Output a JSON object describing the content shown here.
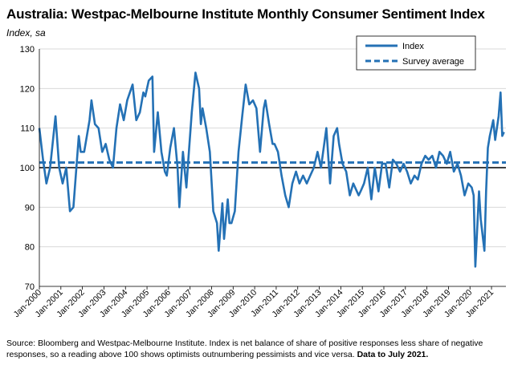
{
  "chart_data": {
    "type": "line",
    "title": "Australia: Westpac-Melbourne Institute Monthly Consumer Sentiment Index",
    "subtitle": "Index, sa",
    "xlabel": "",
    "ylabel": "",
    "ylim": [
      70,
      130
    ],
    "yticks": [
      70,
      80,
      90,
      100,
      110,
      120,
      130
    ],
    "xlim": [
      2000.0,
      2021.67
    ],
    "xticks": [
      "Jan-2000",
      "Jan-2001",
      "Jan-2002",
      "Jan-2003",
      "Jan-2004",
      "Jan-2005",
      "Jan-2006",
      "Jan-2007",
      "Jan-2008",
      "Jan-2009",
      "Jan-2010",
      "Jan-2011",
      "Jan-2012",
      "Jan-2013",
      "Jan-2014",
      "Jan-2015",
      "Jan-2016",
      "Jan-2017",
      "Jan-2018",
      "Jan-2019",
      "Jan-2020",
      "Jan-2021"
    ],
    "grid": true,
    "reference_line": 100,
    "legend_position": "top-right",
    "colors": {
      "series": "#2471b5",
      "reference": "#000000",
      "grid": "#d9d9d9"
    },
    "series": [
      {
        "name": "Index",
        "style": "solid",
        "points": [
          [
            2000.0,
            110
          ],
          [
            2000.17,
            102
          ],
          [
            2000.33,
            96
          ],
          [
            2000.5,
            100
          ],
          [
            2000.75,
            113
          ],
          [
            2000.92,
            100
          ],
          [
            2001.08,
            96
          ],
          [
            2001.25,
            100
          ],
          [
            2001.42,
            89
          ],
          [
            2001.58,
            90
          ],
          [
            2001.83,
            108
          ],
          [
            2001.92,
            104
          ],
          [
            2002.08,
            104
          ],
          [
            2002.33,
            112
          ],
          [
            2002.42,
            117
          ],
          [
            2002.58,
            111
          ],
          [
            2002.75,
            110
          ],
          [
            2002.92,
            104
          ],
          [
            2003.08,
            106
          ],
          [
            2003.25,
            102
          ],
          [
            2003.42,
            100
          ],
          [
            2003.58,
            110
          ],
          [
            2003.75,
            116
          ],
          [
            2003.92,
            112
          ],
          [
            2004.08,
            117
          ],
          [
            2004.33,
            121
          ],
          [
            2004.5,
            112
          ],
          [
            2004.67,
            114
          ],
          [
            2004.83,
            119
          ],
          [
            2004.92,
            118
          ],
          [
            2005.08,
            122
          ],
          [
            2005.25,
            123
          ],
          [
            2005.33,
            104
          ],
          [
            2005.5,
            114
          ],
          [
            2005.67,
            104
          ],
          [
            2005.83,
            99
          ],
          [
            2005.92,
            98
          ],
          [
            2006.08,
            105
          ],
          [
            2006.25,
            110
          ],
          [
            2006.42,
            100
          ],
          [
            2006.5,
            90
          ],
          [
            2006.67,
            104
          ],
          [
            2006.83,
            95
          ],
          [
            2006.92,
            102
          ],
          [
            2007.08,
            114
          ],
          [
            2007.25,
            124
          ],
          [
            2007.42,
            120
          ],
          [
            2007.5,
            111
          ],
          [
            2007.58,
            115
          ],
          [
            2007.75,
            110
          ],
          [
            2007.92,
            104
          ],
          [
            2008.08,
            89
          ],
          [
            2008.25,
            86
          ],
          [
            2008.33,
            79
          ],
          [
            2008.5,
            91
          ],
          [
            2008.58,
            82
          ],
          [
            2008.75,
            92
          ],
          [
            2008.83,
            86
          ],
          [
            2008.92,
            86
          ],
          [
            2009.08,
            89
          ],
          [
            2009.25,
            104
          ],
          [
            2009.42,
            113
          ],
          [
            2009.58,
            121
          ],
          [
            2009.75,
            116
          ],
          [
            2009.92,
            117
          ],
          [
            2010.08,
            115
          ],
          [
            2010.25,
            104
          ],
          [
            2010.42,
            115
          ],
          [
            2010.5,
            117
          ],
          [
            2010.67,
            111
          ],
          [
            2010.83,
            106
          ],
          [
            2010.92,
            106
          ],
          [
            2011.08,
            104
          ],
          [
            2011.25,
            98
          ],
          [
            2011.42,
            93
          ],
          [
            2011.58,
            90
          ],
          [
            2011.75,
            96
          ],
          [
            2011.92,
            99
          ],
          [
            2012.08,
            96
          ],
          [
            2012.25,
            98
          ],
          [
            2012.42,
            96
          ],
          [
            2012.58,
            98
          ],
          [
            2012.75,
            100
          ],
          [
            2012.92,
            104
          ],
          [
            2013.08,
            100
          ],
          [
            2013.33,
            110
          ],
          [
            2013.5,
            96
          ],
          [
            2013.67,
            108
          ],
          [
            2013.83,
            110
          ],
          [
            2013.92,
            106
          ],
          [
            2014.08,
            101
          ],
          [
            2014.25,
            99
          ],
          [
            2014.42,
            93
          ],
          [
            2014.58,
            96
          ],
          [
            2014.83,
            93
          ],
          [
            2014.92,
            94
          ],
          [
            2015.08,
            96
          ],
          [
            2015.25,
            100
          ],
          [
            2015.42,
            92
          ],
          [
            2015.58,
            100
          ],
          [
            2015.75,
            94
          ],
          [
            2015.92,
            101
          ],
          [
            2016.08,
            101
          ],
          [
            2016.25,
            95
          ],
          [
            2016.42,
            102
          ],
          [
            2016.58,
            101
          ],
          [
            2016.75,
            99
          ],
          [
            2016.92,
            101
          ],
          [
            2017.08,
            99
          ],
          [
            2017.25,
            96
          ],
          [
            2017.42,
            98
          ],
          [
            2017.58,
            97
          ],
          [
            2017.75,
            101
          ],
          [
            2017.92,
            103
          ],
          [
            2018.08,
            102
          ],
          [
            2018.25,
            103
          ],
          [
            2018.42,
            100
          ],
          [
            2018.58,
            104
          ],
          [
            2018.75,
            103
          ],
          [
            2018.92,
            101
          ],
          [
            2019.08,
            104
          ],
          [
            2019.25,
            99
          ],
          [
            2019.42,
            101
          ],
          [
            2019.58,
            98
          ],
          [
            2019.75,
            93
          ],
          [
            2019.92,
            96
          ],
          [
            2020.08,
            95
          ],
          [
            2020.17,
            93
          ],
          [
            2020.25,
            75
          ],
          [
            2020.42,
            94
          ],
          [
            2020.5,
            87
          ],
          [
            2020.67,
            79
          ],
          [
            2020.75,
            94
          ],
          [
            2020.83,
            105
          ],
          [
            2020.92,
            108
          ],
          [
            2021.08,
            112
          ],
          [
            2021.17,
            107
          ],
          [
            2021.33,
            113
          ],
          [
            2021.42,
            119
          ],
          [
            2021.5,
            108
          ],
          [
            2021.58,
            109
          ]
        ]
      },
      {
        "name": "Survey average",
        "style": "dashed",
        "value": 101.3
      }
    ]
  },
  "source": {
    "text": "Source: Bloomberg and Westpac-Melbourne Institute.  Index is net balance of share of positive responses less share of negative responses, so a reading above 100 shows optimists outnumbering pessimists and vice versa.",
    "bold_text": "Data to July 2021."
  }
}
